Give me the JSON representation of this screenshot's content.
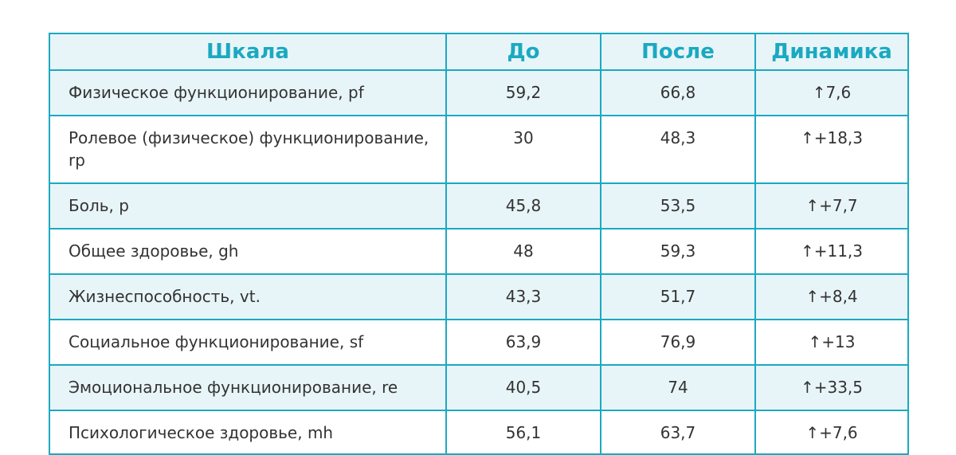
{
  "table": {
    "headers": {
      "scale": "Шкала",
      "before": "До",
      "after": "После",
      "dynamics": "Динамика"
    },
    "rows": [
      {
        "scale": "Физическое функционирование, pf",
        "before": "59,2",
        "after": "66,8",
        "dynamics": "↑7,6"
      },
      {
        "scale": "Ролевое (физическое) функционирование, rp",
        "before": "30",
        "after": "48,3",
        "dynamics": "↑+18,3"
      },
      {
        "scale": "Боль, p",
        "before": "45,8",
        "after": "53,5",
        "dynamics": "↑+7,7"
      },
      {
        "scale": "Общее здоровье, gh",
        "before": "48",
        "after": "59,3",
        "dynamics": "↑+11,3"
      },
      {
        "scale": "Жизнеспособность, vt.",
        "before": "43,3",
        "after": "51,7",
        "dynamics": "↑+8,4"
      },
      {
        "scale": "Социальное функционирование, sf",
        "before": "63,9",
        "after": "76,9",
        "dynamics": "↑+13"
      },
      {
        "scale": "Эмоциональное функционирование, re",
        "before": "40,5",
        "after": "74",
        "dynamics": "↑+33,5"
      },
      {
        "scale": "Психологическое здоровье, mh",
        "before": "56,1",
        "after": "63,7",
        "dynamics": "↑+7,6"
      }
    ]
  },
  "colors": {
    "accent": "#1ba9c1",
    "header_bg": "#e8f5f8",
    "text": "#333333"
  }
}
